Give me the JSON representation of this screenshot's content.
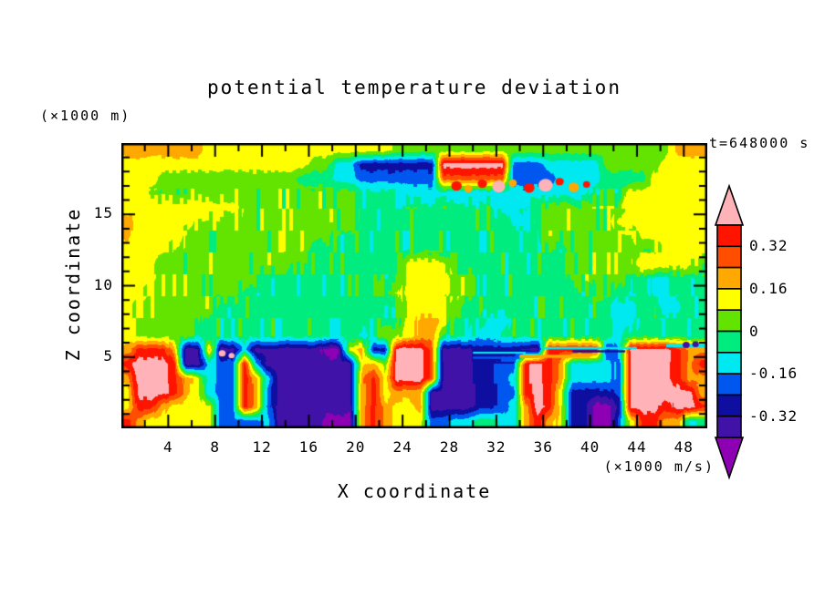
{
  "figure": {
    "title": "potential temperature deviation",
    "time_label": "t=648000 s",
    "x_axis": {
      "label": "X coordinate",
      "unit": "(×1000 m/s)",
      "min": 0,
      "max": 50,
      "ticks": [
        4,
        8,
        12,
        16,
        20,
        24,
        28,
        32,
        36,
        40,
        44,
        48
      ],
      "minor_step": 2
    },
    "y_axis": {
      "label": "Z coordinate",
      "unit": "(×1000 m)",
      "min": 0,
      "max": 20,
      "ticks": [
        5,
        10,
        15
      ],
      "minor_step": 1
    },
    "colorbar": {
      "labels": [
        "0.32",
        "0.16",
        "0",
        "-0.16",
        "-0.32"
      ],
      "cells_top_to_bottom": [
        "R",
        "O",
        "o",
        "Y",
        "g",
        "G",
        "C",
        "B",
        "N",
        "V"
      ],
      "arrow_top": "P",
      "arrow_bottom": "U",
      "top_boundary_value": 0.4,
      "level_step": 0.08
    }
  },
  "chart_data": {
    "type": "heatmap",
    "title": "potential temperature deviation",
    "xlabel": "X coordinate (×1000 m/s)",
    "ylabel": "Z coordinate (×1000 m)",
    "xlim": [
      0,
      50
    ],
    "ylim": [
      0,
      20
    ],
    "timestamp": "t=648000 s",
    "levels": [
      -0.4,
      -0.32,
      -0.24,
      -0.16,
      -0.08,
      0,
      0.08,
      0.16,
      0.24,
      0.32,
      0.4
    ],
    "band_colors_low_to_high": [
      "#8E00B4",
      "#4012A8",
      "#0E0EA0",
      "#0057F0",
      "#00E8F0",
      "#00EC7E",
      "#62E400",
      "#FFFF00",
      "#FFA800",
      "#FF4E00",
      "#FF1400",
      "#FFB2B8"
    ],
    "palette": {
      "P": {
        "hex": "#FFB2B8",
        "value": 0.44
      },
      "R": {
        "hex": "#FF1400",
        "value": 0.36
      },
      "O": {
        "hex": "#FF4E00",
        "value": 0.28
      },
      "o": {
        "hex": "#FFA800",
        "value": 0.2
      },
      "Y": {
        "hex": "#FFFF00",
        "value": 0.12
      },
      "g": {
        "hex": "#62E400",
        "value": 0.04
      },
      "G": {
        "hex": "#00EC7E",
        "value": -0.04
      },
      "C": {
        "hex": "#00E8F0",
        "value": -0.12
      },
      "B": {
        "hex": "#0057F0",
        "value": -0.2
      },
      "N": {
        "hex": "#0E0EA0",
        "value": -0.28
      },
      "V": {
        "hex": "#4012A8",
        "value": -0.36
      },
      "U": {
        "hex": "#8E00B4",
        "value": -0.44
      }
    },
    "grid": {
      "nx": 50,
      "nz": 20,
      "note": "rows top to bottom, row 0 center z=19.5 km, 1 km cells, letters map to palette values",
      "rows": [
        "oooooooYYYYYYYYYYYYYYYYggggggggggggggggggggggggooo",
        "YYYYYYYYYYYYYYYYggCCNNNNNNNPPPPPPBBBCCCCCgggggYYYY",
        "YYYggggggggggggGGGCCBBBBBBBOOOOOOBBBBCCCCGGGGYYYYY",
        "YYggggggggggggggggggGGGGCCCCCCCCCCCCCCCCGGGYYYYYYY",
        "YYYYYYYYYYggggggggggGGGGGGGGGGGGCCGGgggggggYYYYYYY",
        "oYYYYYggggggggggggggGGGGGGGGGGGGGCCGggggggYYYYYYYY",
        "oYYYYgggggggggggggGGGGGGGGGGGGGGGGGGggggggggYYYYYY",
        "YYYYggggggggggggGGGGGGGGGGGGGGGGGGGGGGggggggggYYYY",
        "YYYgggggggggggGGGGGGGGGGYYYYGGGGGGGGGGggggggYYYYgg",
        "YYYgggggggggGGGGGGGGGGGGYYYYggGGGGGGGGgggggGGCCGGG",
        "YYggggggggGGGGGGGGGGGGggYYYYggGGGGGGGGGGggGGGCCGGG",
        "YgggggggGGGGGGGGGGGGGGGGYYYggGGGGGGGGGGGGGCCGGCCGG",
        "YggggggGGGGGGGGGGGGGGGGGYooYGGGCCGGGGGGGGGCCGGGGGG",
        "YgggggGGGGGGGGGGGGGGCGggYooGGGCCGGGGGGGGGGCGGGGGGG",
        "oRRRoVVoVVCVVVVVVUUYoNNPPPOVVVNNNNVVRRRRRNCPPPPRoo",
        "RPPPRVVCBBRCVVVVVVVVYogPPPOVVVNNBBRPRoCCCCBPPPPRoR",
        "oPPPRoYCBBRoCVVVVVVVoRYPPPOVVVNNBCRPRoCCCCBPPPPRoo",
        "YPPPRoYCBBRoBVVVVVVVoRYoooVVVVNNBBRPRYNNNNBPPPPPPo",
        "YRRoYYYYBBRoBVVVVVVVoRoYYoVVVVNNBCoPRYNNUUNPPPRPPR",
        "RoYYYYYYBBBBCVVVVUUUoRoYYYBBCCGGCCoRoYNNUUBYRRooCG"
      ]
    },
    "speckles": [
      {
        "x": 28.6,
        "z": 17.0,
        "r": 0.45,
        "c": "R"
      },
      {
        "x": 29.6,
        "z": 16.8,
        "r": 0.35,
        "c": "o"
      },
      {
        "x": 30.8,
        "z": 17.15,
        "r": 0.4,
        "c": "R"
      },
      {
        "x": 32.2,
        "z": 16.95,
        "r": 0.55,
        "c": "P"
      },
      {
        "x": 33.4,
        "z": 17.2,
        "r": 0.35,
        "c": "o"
      },
      {
        "x": 34.8,
        "z": 16.85,
        "r": 0.45,
        "c": "R"
      },
      {
        "x": 36.2,
        "z": 17.05,
        "r": 0.6,
        "c": "P"
      },
      {
        "x": 37.4,
        "z": 17.3,
        "r": 0.35,
        "c": "R"
      },
      {
        "x": 38.6,
        "z": 16.9,
        "r": 0.45,
        "c": "o"
      },
      {
        "x": 39.7,
        "z": 17.1,
        "r": 0.3,
        "c": "R"
      },
      {
        "x": 8.6,
        "z": 5.25,
        "r": 0.3,
        "c": "P"
      },
      {
        "x": 9.4,
        "z": 5.1,
        "r": 0.25,
        "c": "P"
      },
      {
        "x": 0.6,
        "z": 5.5,
        "r": 0.3,
        "c": "o"
      },
      {
        "x": 48.2,
        "z": 5.85,
        "r": 0.3,
        "c": "V"
      },
      {
        "x": 49.0,
        "z": 5.9,
        "r": 0.28,
        "c": "V"
      }
    ],
    "stripes": [
      {
        "x0": 30,
        "x1": 34,
        "z": 4.95,
        "h": 0.16,
        "c": "B"
      },
      {
        "x0": 30,
        "x1": 34.5,
        "z": 5.3,
        "h": 0.14,
        "c": "C"
      },
      {
        "x0": 30.5,
        "x1": 33.5,
        "z": 4.6,
        "h": 0.13,
        "c": "N"
      },
      {
        "x0": 34,
        "x1": 40,
        "z": 5.05,
        "h": 0.22,
        "c": "o"
      },
      {
        "x0": 36,
        "x1": 44,
        "z": 5.62,
        "h": 0.16,
        "c": "C"
      },
      {
        "x0": 38.5,
        "x1": 43,
        "z": 5.4,
        "h": 0.15,
        "c": "N"
      },
      {
        "x0": 46.5,
        "x1": 50,
        "z": 5.8,
        "h": 0.25,
        "c": "C"
      }
    ],
    "noise": {
      "amp_mid": 0.05,
      "amp_low": 0.018,
      "amp_top": 0.012,
      "block_w": 4,
      "block_h": 24,
      "mid_zmin": 5.7,
      "mid_zmax": 16.8
    }
  }
}
